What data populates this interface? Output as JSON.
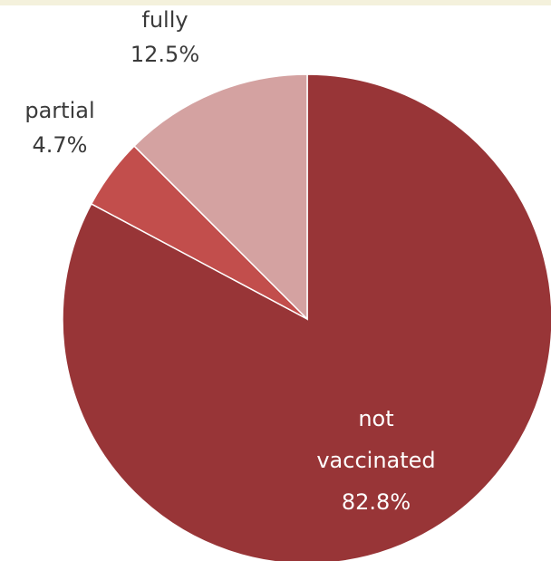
{
  "chart_data": {
    "type": "pie",
    "categories": [
      "not vaccinated",
      "partial",
      "fully"
    ],
    "values": [
      82.8,
      4.7,
      12.5
    ],
    "value_unit": "%",
    "start_angle_deg": 0,
    "direction": "clockwise",
    "slices": [
      {
        "label_lines": [
          "not",
          "vaccinated"
        ],
        "value_text": "82.8%",
        "color": "#983537",
        "label_color": "#ffffff"
      },
      {
        "label_lines": [
          "partial"
        ],
        "value_text": "4.7%",
        "color": "#c24e4c",
        "label_color": "#3a3a3a"
      },
      {
        "label_lines": [
          "fully"
        ],
        "value_text": "12.5%",
        "color": "#d4a2a1",
        "label_color": "#3a3a3a"
      }
    ],
    "title": "",
    "legend": "none",
    "data_labels": "outside for small slices, inside for large slice"
  },
  "colors": {
    "background": "#ffffff",
    "top_strip": "#f4f1dc",
    "separator": "#ffffff"
  }
}
